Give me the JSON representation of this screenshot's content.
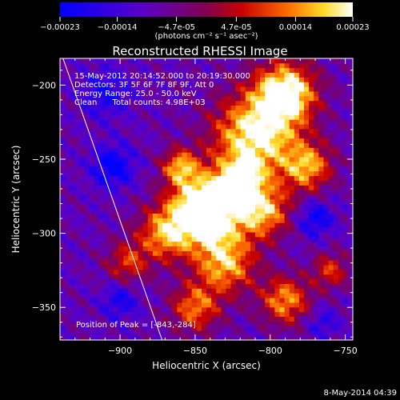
{
  "colorbar": {
    "ticks": [
      "-0.00023",
      "-0.00014",
      "-4.7e-05",
      "4.7e-05",
      "0.00014",
      "0.00023"
    ],
    "unit_label": "(photons cm⁻² s⁻¹ asec⁻²)",
    "range": [
      -0.00023,
      0.00023
    ]
  },
  "chart_data": {
    "type": "heatmap",
    "title": "Reconstructed RHESSI Image",
    "xlabel": "Heliocentric X (arcsec)",
    "ylabel": "Heliocentric Y (arcsec)",
    "xlim": [
      -940,
      -745
    ],
    "ylim": [
      -372,
      -182
    ],
    "x_ticks": [
      -900,
      -850,
      -800,
      -750
    ],
    "y_ticks": [
      -200,
      -250,
      -300,
      -350
    ],
    "x_tick_labels": [
      "−900",
      "−850",
      "−800",
      "−750"
    ],
    "y_tick_labels": [
      "−200",
      "−250",
      "−300",
      "−350"
    ],
    "peak": [
      -843,
      -284
    ],
    "annotations": [
      "15-May-2012 20:14:52.000 to 20:19:30.000",
      "Detectors: 3F 5F 6F 7F 8F 9F, Att 0",
      "Energy Range: 25.0 - 50.0 keV",
      "Clean      Total counts: 4.98E+03"
    ],
    "peak_label": "Position of Peak = [-843,-284]",
    "limb_line": [
      [
        -938,
        -182
      ],
      [
        -872,
        -372
      ]
    ],
    "flux_range": [
      -0.00023,
      0.00023
    ]
  },
  "footer": {
    "date": "8-May-2014 04:39"
  }
}
